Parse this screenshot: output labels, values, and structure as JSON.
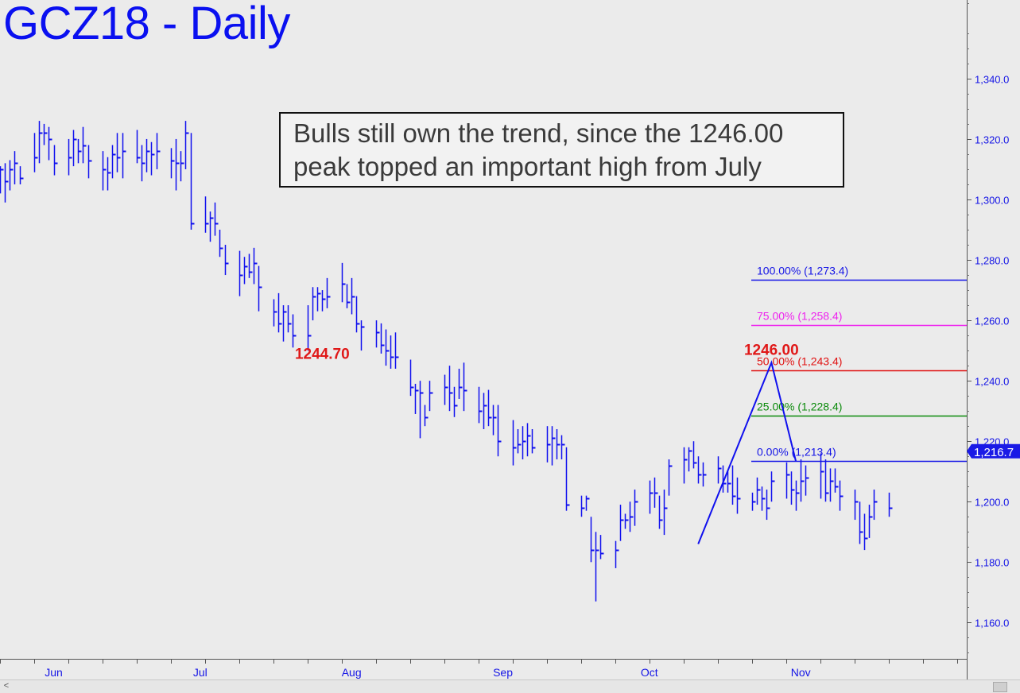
{
  "title": "GCZ18 - Daily",
  "note_lines": [
    "Bulls still own the trend, since the 1246.00",
    "peak topped an important high from July"
  ],
  "chart_data": {
    "type": "ohlc",
    "title": "GCZ18 - Daily",
    "ylim": [
      1148,
      1366
    ],
    "y_ticks": [
      1160,
      1180,
      1200,
      1220,
      1240,
      1260,
      1280,
      1300,
      1320,
      1340
    ],
    "y_tick_labels": [
      "1,160.0",
      "1,180.0",
      "1,200.0",
      "1,220.0",
      "1,240.0",
      "1,260.0",
      "1,280.0",
      "1,300.0",
      "1,320.0",
      "1,340.0"
    ],
    "x_labels": [
      "Jun",
      "Jul",
      "Aug",
      "Sep",
      "Oct",
      "Nov"
    ],
    "x_range": [
      "2018-05-21",
      "2018-12-05"
    ],
    "last_price": "1,216.7",
    "last_price_value": 1216.7,
    "annotations": [
      {
        "text": "1244.70",
        "date": "2018-07-26",
        "value": 1244.7
      },
      {
        "text": "1246.00",
        "date": "2018-10-26",
        "value": 1246.0
      }
    ],
    "swing_line": [
      {
        "date": "2018-10-11",
        "value": 1186.0
      },
      {
        "date": "2018-10-26",
        "value": 1246.0
      },
      {
        "date": "2018-10-31",
        "value": 1213.4
      }
    ],
    "fib_levels": [
      {
        "label": "100.00% (1,273.4)",
        "value": 1273.4,
        "color": "#1515e6"
      },
      {
        "label": "75.00% (1,258.4)",
        "value": 1258.4,
        "color": "#ee22ee"
      },
      {
        "label": "50.00% (1,243.4)",
        "value": 1243.4,
        "color": "#e01010"
      },
      {
        "label": "25.00% (1,228.4)",
        "value": 1228.4,
        "color": "#0a8a0a"
      },
      {
        "label": "0.00% (1,213.4)",
        "value": 1213.4,
        "color": "#1515e6"
      }
    ],
    "bars": [
      {
        "date": "2018-05-21",
        "h": 1311,
        "l": 1302,
        "c": 1310
      },
      {
        "date": "2018-05-22",
        "h": 1312,
        "l": 1299,
        "c": 1306
      },
      {
        "date": "2018-05-23",
        "h": 1313,
        "l": 1303,
        "c": 1310
      },
      {
        "date": "2018-05-24",
        "h": 1316,
        "l": 1305,
        "c": 1312
      },
      {
        "date": "2018-05-25",
        "h": 1311,
        "l": 1305,
        "c": 1307
      },
      {
        "date": "2018-05-28",
        "h": 1322,
        "l": 1309,
        "c": 1314
      },
      {
        "date": "2018-05-29",
        "h": 1326,
        "l": 1312,
        "c": 1322
      },
      {
        "date": "2018-05-30",
        "h": 1325,
        "l": 1318,
        "c": 1322
      },
      {
        "date": "2018-05-31",
        "h": 1324,
        "l": 1313,
        "c": 1320
      },
      {
        "date": "2018-06-01",
        "h": 1318,
        "l": 1308,
        "c": 1312
      },
      {
        "date": "2018-06-04",
        "h": 1320,
        "l": 1308,
        "c": 1314
      },
      {
        "date": "2018-06-05",
        "h": 1323,
        "l": 1311,
        "c": 1320
      },
      {
        "date": "2018-06-06",
        "h": 1320,
        "l": 1312,
        "c": 1316
      },
      {
        "date": "2018-06-07",
        "h": 1324,
        "l": 1312,
        "c": 1318
      },
      {
        "date": "2018-06-08",
        "h": 1318,
        "l": 1307,
        "c": 1313
      },
      {
        "date": "2018-06-11",
        "h": 1316,
        "l": 1303,
        "c": 1310
      },
      {
        "date": "2018-06-12",
        "h": 1314,
        "l": 1303,
        "c": 1309
      },
      {
        "date": "2018-06-13",
        "h": 1318,
        "l": 1307,
        "c": 1315
      },
      {
        "date": "2018-06-14",
        "h": 1322,
        "l": 1309,
        "c": 1314
      },
      {
        "date": "2018-06-15",
        "h": 1322,
        "l": 1307,
        "c": 1316
      },
      {
        "date": "2018-06-18",
        "h": 1323,
        "l": 1312,
        "c": 1314
      },
      {
        "date": "2018-06-19",
        "h": 1318,
        "l": 1306,
        "c": 1312
      },
      {
        "date": "2018-06-20",
        "h": 1320,
        "l": 1309,
        "c": 1316
      },
      {
        "date": "2018-06-21",
        "h": 1319,
        "l": 1308,
        "c": 1315
      },
      {
        "date": "2018-06-22",
        "h": 1322,
        "l": 1310,
        "c": 1316
      },
      {
        "date": "2018-06-25",
        "h": 1317,
        "l": 1307,
        "c": 1313
      },
      {
        "date": "2018-06-26",
        "h": 1320,
        "l": 1303,
        "c": 1312
      },
      {
        "date": "2018-06-27",
        "h": 1316,
        "l": 1306,
        "c": 1312
      },
      {
        "date": "2018-06-28",
        "h": 1326,
        "l": 1310,
        "c": 1322
      },
      {
        "date": "2018-06-29",
        "h": 1322,
        "l": 1290,
        "c": 1292
      },
      {
        "date": "2018-07-02",
        "h": 1301,
        "l": 1289,
        "c": 1292
      },
      {
        "date": "2018-07-03",
        "h": 1296,
        "l": 1286,
        "c": 1294
      },
      {
        "date": "2018-07-04",
        "h": 1299,
        "l": 1288,
        "c": 1292
      },
      {
        "date": "2018-07-05",
        "h": 1290,
        "l": 1281,
        "c": 1284
      },
      {
        "date": "2018-07-06",
        "h": 1285,
        "l": 1275,
        "c": 1279
      },
      {
        "date": "2018-07-09",
        "h": 1283,
        "l": 1268,
        "c": 1275
      },
      {
        "date": "2018-07-10",
        "h": 1281,
        "l": 1272,
        "c": 1278
      },
      {
        "date": "2018-07-11",
        "h": 1282,
        "l": 1274,
        "c": 1276
      },
      {
        "date": "2018-07-12",
        "h": 1284,
        "l": 1272,
        "c": 1279
      },
      {
        "date": "2018-07-13",
        "h": 1278,
        "l": 1263,
        "c": 1271
      },
      {
        "date": "2018-07-16",
        "h": 1267,
        "l": 1258,
        "c": 1263
      },
      {
        "date": "2018-07-17",
        "h": 1269,
        "l": 1256,
        "c": 1259
      },
      {
        "date": "2018-07-18",
        "h": 1265,
        "l": 1253,
        "c": 1263
      },
      {
        "date": "2018-07-19",
        "h": 1265,
        "l": 1256,
        "c": 1259
      },
      {
        "date": "2018-07-20",
        "h": 1262,
        "l": 1251,
        "c": 1255
      },
      {
        "date": "2018-07-23",
        "h": 1265,
        "l": 1250,
        "c": 1255
      },
      {
        "date": "2018-07-24",
        "h": 1271,
        "l": 1260,
        "c": 1268
      },
      {
        "date": "2018-07-25",
        "h": 1271,
        "l": 1263,
        "c": 1269
      },
      {
        "date": "2018-07-26",
        "h": 1270,
        "l": 1263,
        "c": 1267
      },
      {
        "date": "2018-07-27",
        "h": 1274,
        "l": 1264,
        "c": 1268
      },
      {
        "date": "2018-07-30",
        "h": 1279,
        "l": 1266,
        "c": 1272
      },
      {
        "date": "2018-07-31",
        "h": 1272,
        "l": 1264,
        "c": 1266
      },
      {
        "date": "2018-08-01",
        "h": 1274,
        "l": 1262,
        "c": 1268
      },
      {
        "date": "2018-08-02",
        "h": 1268,
        "l": 1256,
        "c": 1259
      },
      {
        "date": "2018-08-03",
        "h": 1260,
        "l": 1250,
        "c": 1258
      },
      {
        "date": "2018-08-06",
        "h": 1260,
        "l": 1251,
        "c": 1256
      },
      {
        "date": "2018-08-07",
        "h": 1259,
        "l": 1249,
        "c": 1252
      },
      {
        "date": "2018-08-08",
        "h": 1257,
        "l": 1245,
        "c": 1250
      },
      {
        "date": "2018-08-09",
        "h": 1255,
        "l": 1244,
        "c": 1248
      },
      {
        "date": "2018-08-10",
        "h": 1256,
        "l": 1244,
        "c": 1248
      },
      {
        "date": "2018-08-13",
        "h": 1247,
        "l": 1235,
        "c": 1238
      },
      {
        "date": "2018-08-14",
        "h": 1239,
        "l": 1229,
        "c": 1237
      },
      {
        "date": "2018-08-15",
        "h": 1240,
        "l": 1221,
        "c": 1236
      },
      {
        "date": "2018-08-16",
        "h": 1232,
        "l": 1225,
        "c": 1228
      },
      {
        "date": "2018-08-17",
        "h": 1240,
        "l": 1230,
        "c": 1236
      },
      {
        "date": "2018-08-20",
        "h": 1242,
        "l": 1232,
        "c": 1238
      },
      {
        "date": "2018-08-21",
        "h": 1245,
        "l": 1230,
        "c": 1236
      },
      {
        "date": "2018-08-22",
        "h": 1238,
        "l": 1228,
        "c": 1232
      },
      {
        "date": "2018-08-23",
        "h": 1244,
        "l": 1234,
        "c": 1238
      },
      {
        "date": "2018-08-24",
        "h": 1246,
        "l": 1230,
        "c": 1237
      },
      {
        "date": "2018-08-27",
        "h": 1238,
        "l": 1226,
        "c": 1230
      },
      {
        "date": "2018-08-28",
        "h": 1236,
        "l": 1224,
        "c": 1232
      },
      {
        "date": "2018-08-29",
        "h": 1237,
        "l": 1225,
        "c": 1228
      },
      {
        "date": "2018-08-30",
        "h": 1232,
        "l": 1222,
        "c": 1228
      },
      {
        "date": "2018-08-31",
        "h": 1232,
        "l": 1215,
        "c": 1220
      },
      {
        "date": "2018-09-03",
        "h": 1227,
        "l": 1212,
        "c": 1218
      },
      {
        "date": "2018-09-04",
        "h": 1224,
        "l": 1216,
        "c": 1219
      },
      {
        "date": "2018-09-05",
        "h": 1225,
        "l": 1214,
        "c": 1220
      },
      {
        "date": "2018-09-06",
        "h": 1226,
        "l": 1215,
        "c": 1222
      },
      {
        "date": "2018-09-07",
        "h": 1224,
        "l": 1216,
        "c": 1218
      },
      {
        "date": "2018-09-10",
        "h": 1225,
        "l": 1213,
        "c": 1219
      },
      {
        "date": "2018-09-11",
        "h": 1225,
        "l": 1212,
        "c": 1221
      },
      {
        "date": "2018-09-12",
        "h": 1224,
        "l": 1214,
        "c": 1219
      },
      {
        "date": "2018-09-13",
        "h": 1222,
        "l": 1214,
        "c": 1219
      },
      {
        "date": "2018-09-14",
        "h": 1218,
        "l": 1197,
        "c": 1199
      },
      {
        "date": "2018-09-17",
        "h": 1202,
        "l": 1195,
        "c": 1198
      },
      {
        "date": "2018-09-18",
        "h": 1202,
        "l": 1197,
        "c": 1201
      },
      {
        "date": "2018-09-19",
        "h": 1195,
        "l": 1180,
        "c": 1184
      },
      {
        "date": "2018-09-20",
        "h": 1190,
        "l": 1167,
        "c": 1184
      },
      {
        "date": "2018-09-21",
        "h": 1189,
        "l": 1181,
        "c": 1183
      },
      {
        "date": "2018-09-24",
        "h": 1187,
        "l": 1178,
        "c": 1184
      },
      {
        "date": "2018-09-25",
        "h": 1199,
        "l": 1187,
        "c": 1194
      },
      {
        "date": "2018-09-26",
        "h": 1196,
        "l": 1191,
        "c": 1194
      },
      {
        "date": "2018-09-27",
        "h": 1200,
        "l": 1190,
        "c": 1195
      },
      {
        "date": "2018-09-28",
        "h": 1204,
        "l": 1192,
        "c": 1200
      },
      {
        "date": "2018-10-01",
        "h": 1207,
        "l": 1196,
        "c": 1203
      },
      {
        "date": "2018-10-02",
        "h": 1208,
        "l": 1198,
        "c": 1203
      },
      {
        "date": "2018-10-03",
        "h": 1202,
        "l": 1191,
        "c": 1194
      },
      {
        "date": "2018-10-04",
        "h": 1204,
        "l": 1189,
        "c": 1198
      },
      {
        "date": "2018-10-05",
        "h": 1214,
        "l": 1202,
        "c": 1212
      },
      {
        "date": "2018-10-08",
        "h": 1218,
        "l": 1206,
        "c": 1214
      },
      {
        "date": "2018-10-09",
        "h": 1218,
        "l": 1210,
        "c": 1217
      },
      {
        "date": "2018-10-10",
        "h": 1220,
        "l": 1211,
        "c": 1213
      },
      {
        "date": "2018-10-11",
        "h": 1215,
        "l": 1206,
        "c": 1209
      },
      {
        "date": "2018-10-12",
        "h": 1213,
        "l": 1205,
        "c": 1209
      },
      {
        "date": "2018-10-15",
        "h": 1215,
        "l": 1206,
        "c": 1211
      },
      {
        "date": "2018-10-16",
        "h": 1212,
        "l": 1203,
        "c": 1206
      },
      {
        "date": "2018-10-17",
        "h": 1210,
        "l": 1203,
        "c": 1206
      },
      {
        "date": "2018-10-18",
        "h": 1212,
        "l": 1199,
        "c": 1202
      },
      {
        "date": "2018-10-19",
        "h": 1208,
        "l": 1196,
        "c": 1201
      },
      {
        "date": "2018-10-22",
        "h": 1203,
        "l": 1197,
        "c": 1200
      },
      {
        "date": "2018-10-23",
        "h": 1208,
        "l": 1199,
        "c": 1204
      },
      {
        "date": "2018-10-24",
        "h": 1205,
        "l": 1197,
        "c": 1201
      },
      {
        "date": "2018-10-25",
        "h": 1204,
        "l": 1194,
        "c": 1198
      },
      {
        "date": "2018-10-26",
        "h": 1210,
        "l": 1200,
        "c": 1207
      },
      {
        "date": "2018-10-29",
        "h": 1213,
        "l": 1201,
        "c": 1209
      },
      {
        "date": "2018-10-30",
        "h": 1210,
        "l": 1199,
        "c": 1204
      },
      {
        "date": "2018-10-31",
        "h": 1207,
        "l": 1197,
        "c": 1203
      },
      {
        "date": "2018-11-01",
        "h": 1214,
        "l": 1200,
        "c": 1207
      },
      {
        "date": "2018-11-02",
        "h": 1212,
        "l": 1202,
        "c": 1208
      },
      {
        "date": "2018-11-05",
        "h": 1216,
        "l": 1201,
        "c": 1210
      },
      {
        "date": "2018-11-06",
        "h": 1214,
        "l": 1200,
        "c": 1203
      },
      {
        "date": "2018-11-07",
        "h": 1211,
        "l": 1200,
        "c": 1207
      },
      {
        "date": "2018-11-08",
        "h": 1211,
        "l": 1203,
        "c": 1205
      },
      {
        "date": "2018-11-09",
        "h": 1207,
        "l": 1197,
        "c": 1202
      },
      {
        "date": "2018-11-12",
        "h": 1204,
        "l": 1194,
        "c": 1200
      },
      {
        "date": "2018-11-13",
        "h": 1200,
        "l": 1186,
        "c": 1190
      },
      {
        "date": "2018-11-14",
        "h": 1196,
        "l": 1184,
        "c": 1188
      },
      {
        "date": "2018-11-15",
        "h": 1199,
        "l": 1188,
        "c": 1195
      },
      {
        "date": "2018-11-16",
        "h": 1204,
        "l": 1194,
        "c": 1200
      },
      {
        "date": "2018-11-19",
        "h": 1203,
        "l": 1195,
        "c": 1198
      }
    ]
  }
}
